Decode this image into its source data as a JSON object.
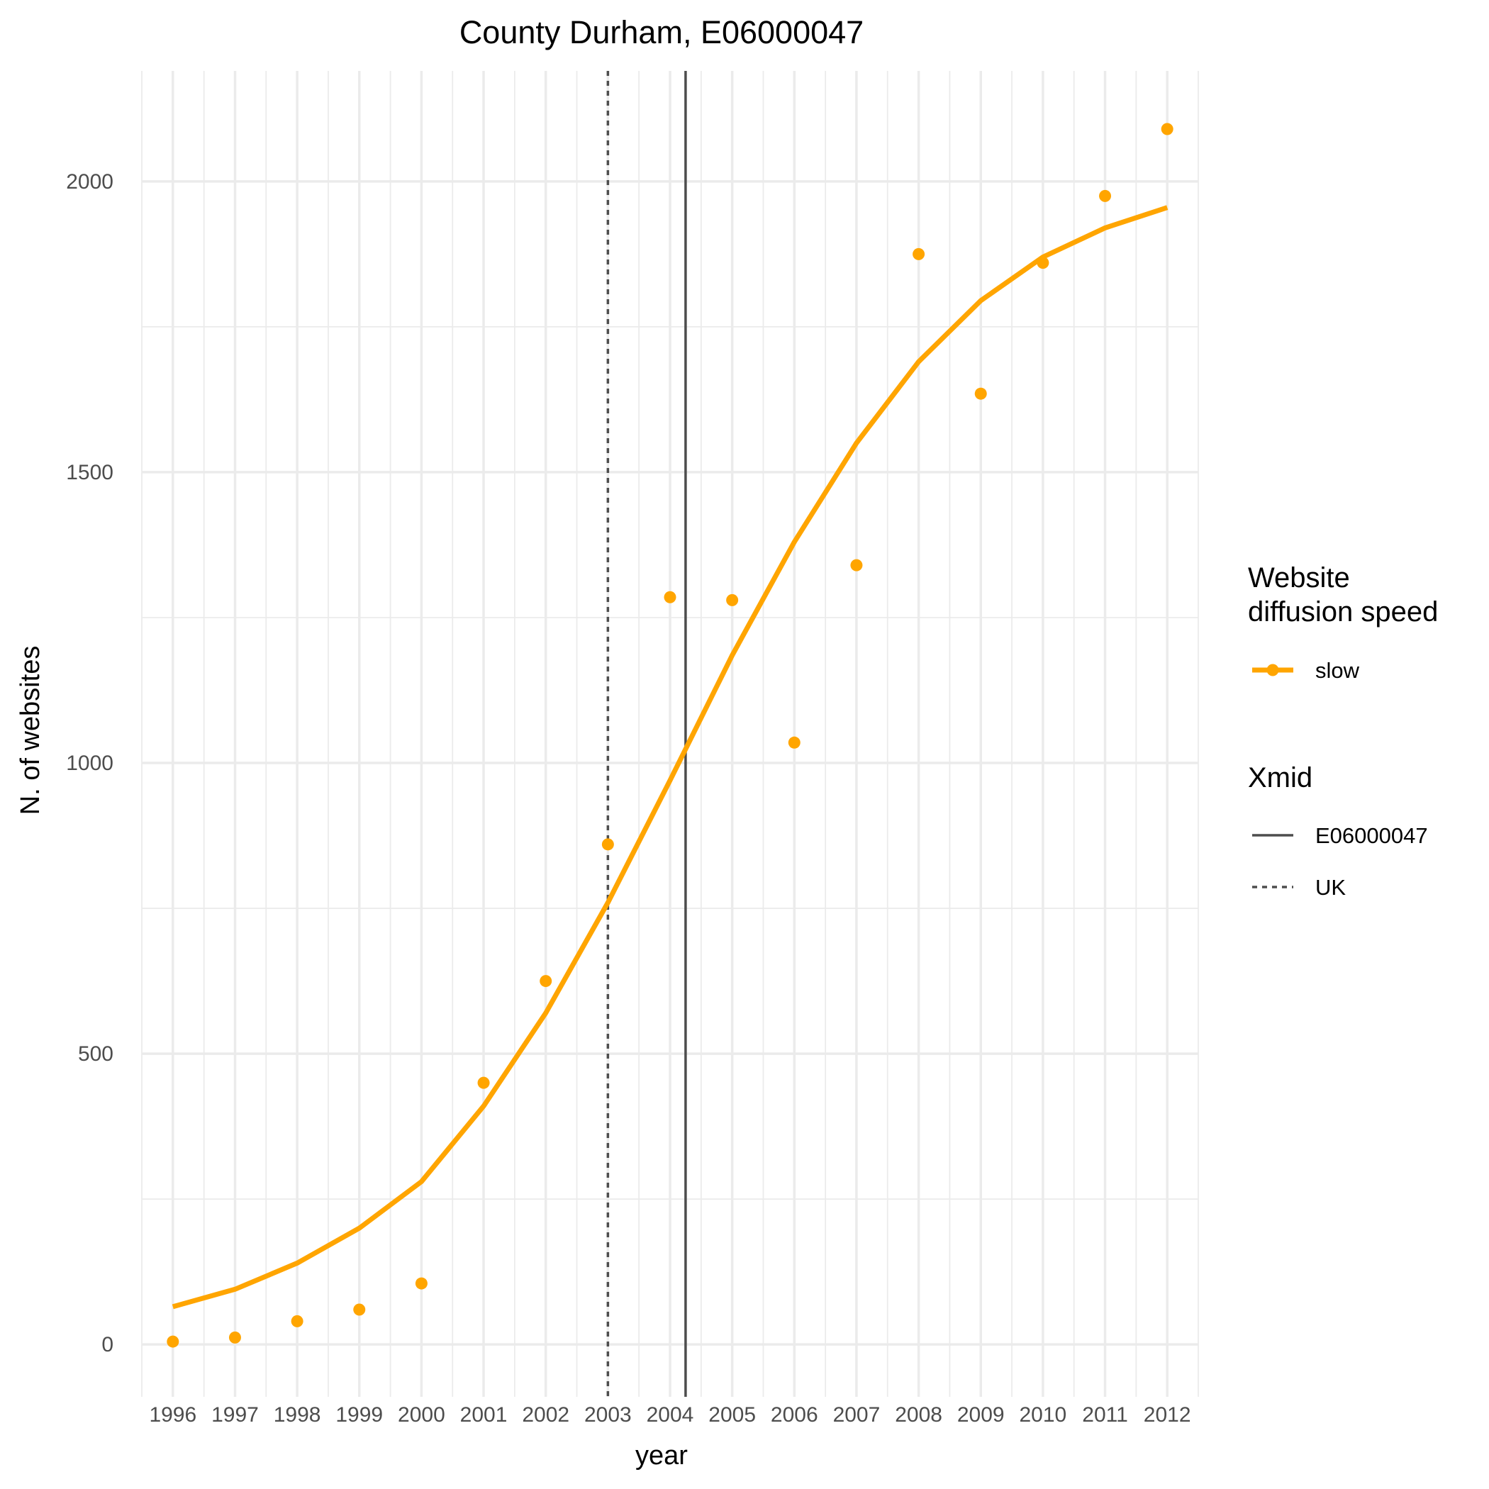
{
  "chart_data": {
    "type": "line",
    "title": "County Durham, E06000047",
    "xlabel": "year",
    "ylabel": "N. of websites",
    "x": [
      1996,
      1997,
      1998,
      1999,
      2000,
      2001,
      2002,
      2003,
      2004,
      2005,
      2006,
      2007,
      2008,
      2009,
      2010,
      2011,
      2012
    ],
    "x_tick_labels": [
      "1996",
      "1997",
      "1998",
      "1999",
      "2000",
      "2001",
      "2002",
      "2003",
      "2004",
      "2005",
      "2006",
      "2007",
      "2008",
      "2009",
      "2010",
      "2011",
      "2012"
    ],
    "y_ticks": [
      0,
      500,
      1000,
      1500,
      2000
    ],
    "y_tick_labels": [
      "0",
      "500",
      "1000",
      "1500",
      "2000"
    ],
    "xlim": [
      1995.5,
      2012.5
    ],
    "ylim": [
      -90,
      2190
    ],
    "grid": true,
    "series": [
      {
        "name": "slow",
        "kind": "fitted-line",
        "color": "#FFA500",
        "values": [
          65,
          95,
          140,
          200,
          280,
          410,
          570,
          760,
          970,
          1185,
          1380,
          1550,
          1690,
          1795,
          1870,
          1920,
          1955
        ]
      },
      {
        "name": "slow",
        "kind": "observed-points",
        "color": "#FFA500",
        "values": [
          5,
          12,
          40,
          60,
          105,
          450,
          625,
          860,
          1285,
          1280,
          1035,
          1340,
          1875,
          1635,
          1860,
          1975,
          2090
        ]
      }
    ],
    "vlines": [
      {
        "name": "E06000047",
        "x": 2004.25,
        "style": "solid",
        "color": "#4d4d4d"
      },
      {
        "name": "UK",
        "x": 2003.0,
        "style": "dotted",
        "color": "#4d4d4d"
      }
    ],
    "legend": {
      "position": "right",
      "groups": [
        {
          "title": "Website\ndiffusion speed",
          "title_lines": [
            "Website",
            "diffusion speed"
          ],
          "entries": [
            {
              "label": "slow",
              "type": "line-point",
              "color": "#FFA500"
            }
          ]
        },
        {
          "title": "Xmid",
          "title_lines": [
            "Xmid"
          ],
          "entries": [
            {
              "label": "E06000047",
              "type": "solid"
            },
            {
              "label": "UK",
              "type": "dotted"
            }
          ]
        }
      ]
    }
  }
}
